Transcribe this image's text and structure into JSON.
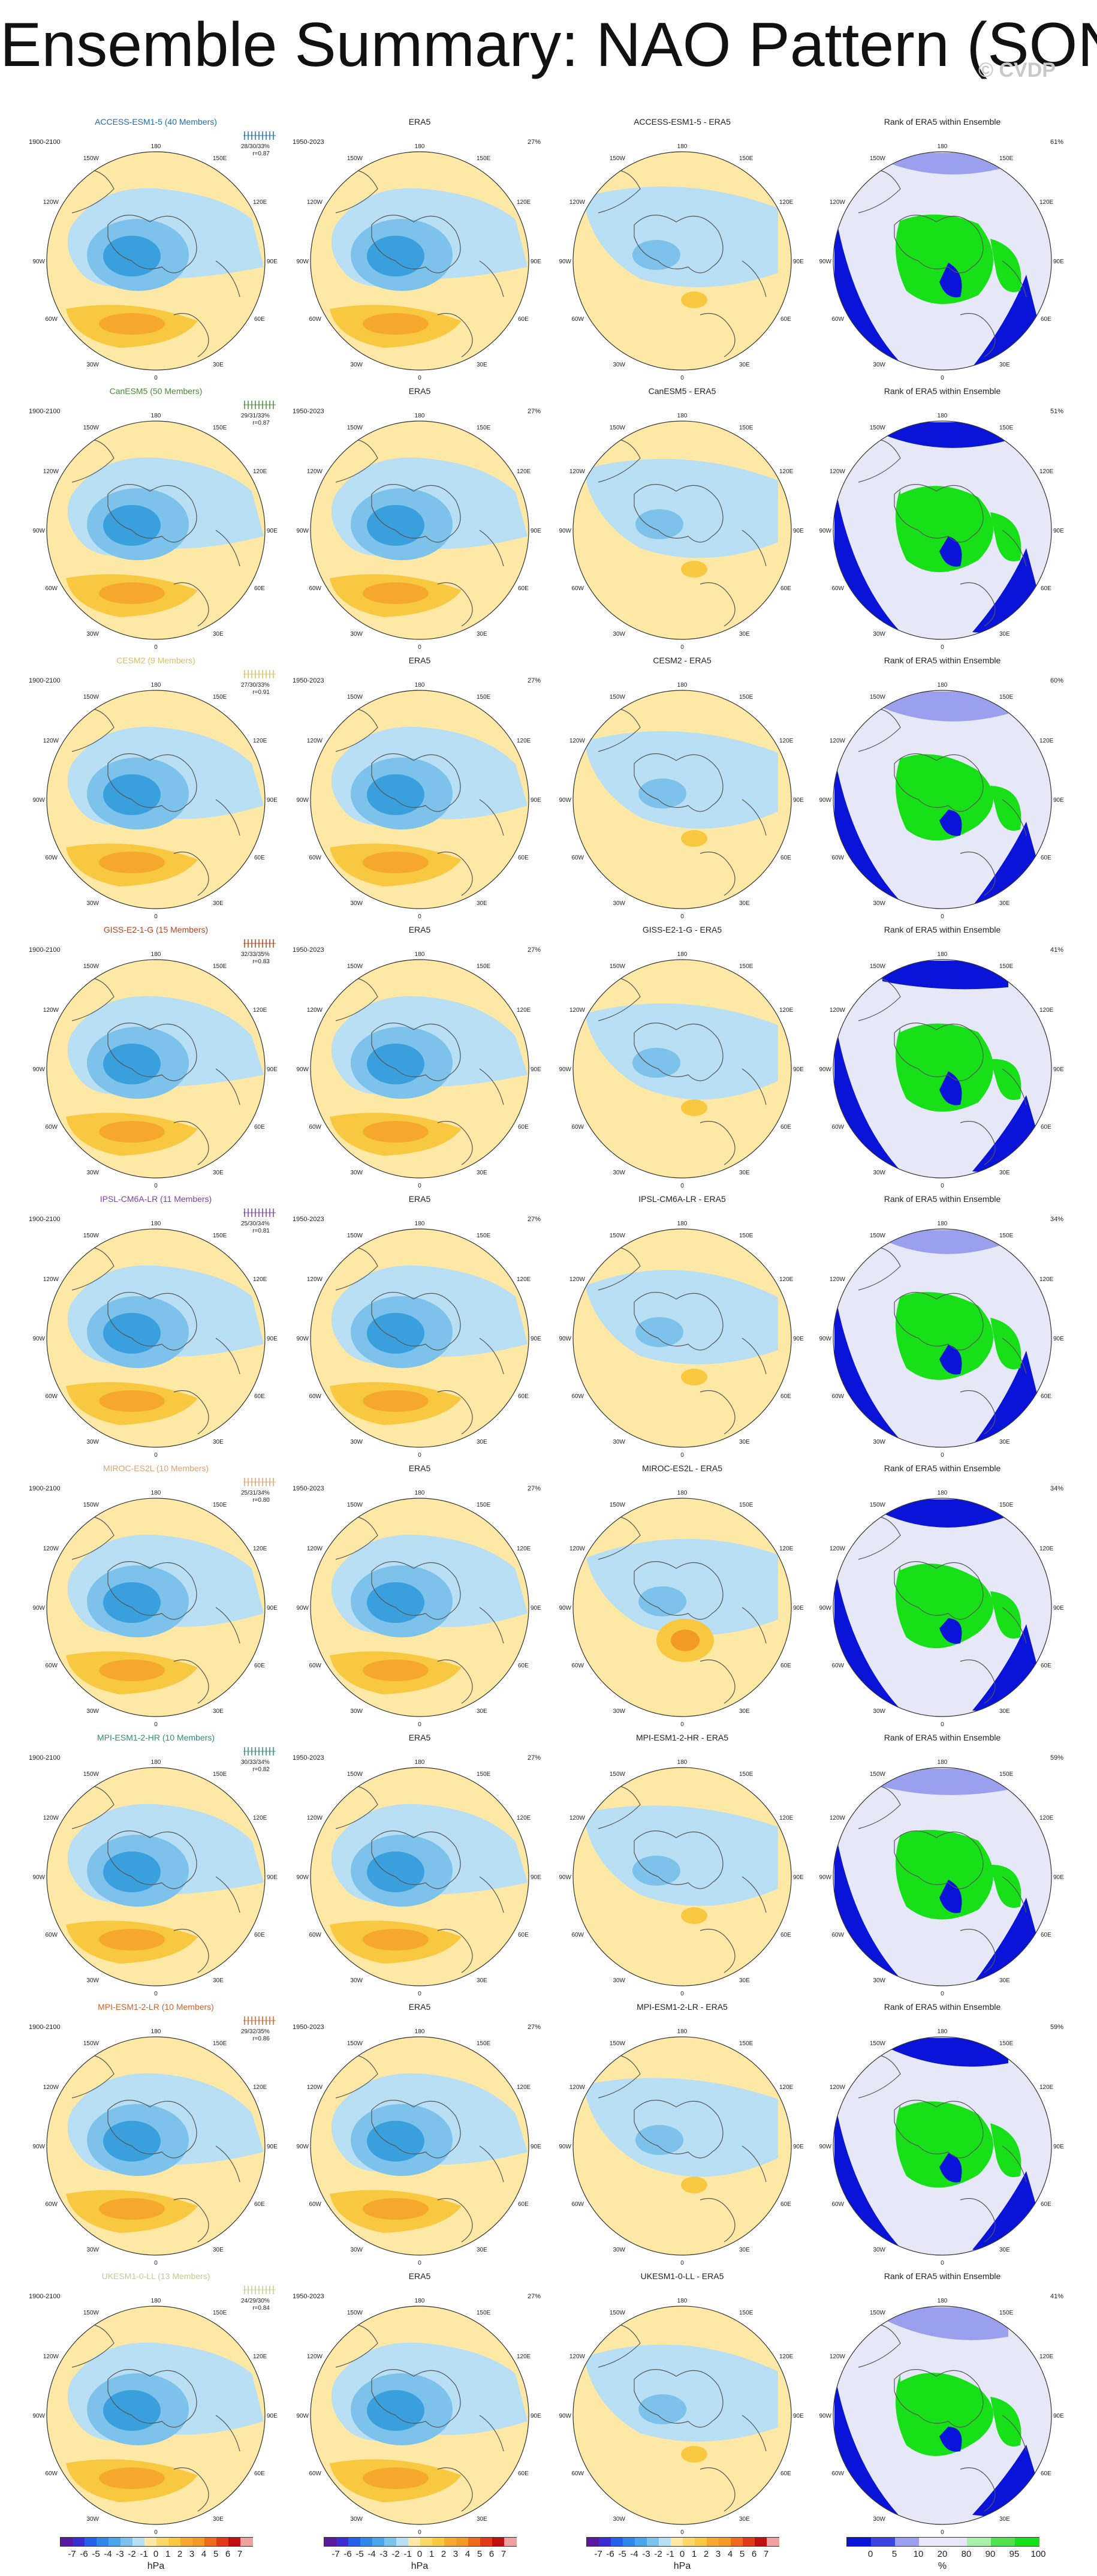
{
  "title": "Ensemble Summary: NAO Pattern (SON)",
  "watermark": "© CVDP",
  "column_headers": [
    "ERA5",
    "Rank of ERA5 within Ensemble"
  ],
  "colors": {
    "positive_light": "#fde9a5",
    "positive": "#f8c840",
    "positive_strong": "#f39a24",
    "negative_light": "#b9dff5",
    "negative": "#7cc2ea",
    "negative_strong": "#3aa0dd",
    "rank_low": "#0a14d8",
    "rank_mid": "#e6e8f8",
    "rank_high": "#18e018",
    "ocean_bg": "#ffffff"
  },
  "map_labels": {
    "top": "180",
    "bottom": "0",
    "upper_left": "150W",
    "upper_right": "150E",
    "mid_left_upper": "120W",
    "mid_right_upper": "120E",
    "left": "90W",
    "right": "90E",
    "lower_left_mid": "60W",
    "lower_right_mid": "60E",
    "lower_left": "30W",
    "lower_right": "30E"
  },
  "chart_data": {
    "type": "table",
    "description_rows": "9 model rows x 4 columns of polar stereographic maps",
    "rows": [
      {
        "model": "ACCESS-ESM1-5 (40 Members)",
        "model_short": "ACCESS-ESM1-5",
        "color": "#1f6fa8",
        "period": "1900-2100",
        "stats": "28/30/33%",
        "r": "r=0.87",
        "rank_pct": "61%"
      },
      {
        "model": "CanESM5 (50 Members)",
        "model_short": "CanESM5",
        "color": "#4a8a3a",
        "period": "1900-2100",
        "stats": "29/31/33%",
        "r": "r=0.87",
        "rank_pct": "51%"
      },
      {
        "model": "CESM2 (9 Members)",
        "model_short": "CESM2",
        "color": "#d8c060",
        "period": "1900-2100",
        "stats": "27/30/33%",
        "r": "r=0.91",
        "rank_pct": "60%"
      },
      {
        "model": "GISS-E2-1-G (15 Members)",
        "model_short": "GISS-E2-1-G",
        "color": "#b5431e",
        "period": "1900-2100",
        "stats": "32/33/35%",
        "r": "r=0.83",
        "rank_pct": "41%"
      },
      {
        "model": "IPSL-CM6A-LR (11 Members)",
        "model_short": "IPSL-CM6A-LR",
        "color": "#7a3fb0",
        "period": "1900-2100",
        "stats": "25/30/34%",
        "r": "r=0.81",
        "rank_pct": "34%"
      },
      {
        "model": "MIROC-ES2L (10 Members)",
        "model_short": "MIROC-ES2L",
        "color": "#e0a070",
        "period": "1900-2100",
        "stats": "25/31/34%",
        "r": "r=0.80",
        "rank_pct": "34%"
      },
      {
        "model": "MPI-ESM1-2-HR (10 Members)",
        "model_short": "MPI-ESM1-2-HR",
        "color": "#2f8a78",
        "period": "1900-2100",
        "stats": "30/33/34%",
        "r": "r=0.82",
        "rank_pct": "59%"
      },
      {
        "model": "MPI-ESM1-2-LR (10 Members)",
        "model_short": "MPI-ESM1-2-LR",
        "color": "#d0612a",
        "period": "1900-2100",
        "stats": "29/32/35%",
        "r": "r=0.86",
        "rank_pct": "59%"
      },
      {
        "model": "UKESM1-0-LL (13 Members)",
        "model_short": "UKESM1-0-LL",
        "color": "#c8c890",
        "period": "1900-2100",
        "stats": "24/29/30%",
        "r": "r=0.84",
        "rank_pct": "41%"
      }
    ],
    "era5": {
      "title": "ERA5",
      "period": "1950-2023",
      "pct": "27%"
    },
    "difference_suffix": " - ERA5",
    "colorbar_hpa": {
      "ticks": [
        "-7",
        "-6",
        "-5",
        "-4",
        "-3",
        "-2",
        "-1",
        "0",
        "1",
        "2",
        "3",
        "4",
        "5",
        "6",
        "7"
      ],
      "unit": "hPa",
      "colors": [
        "#5a1aa0",
        "#3a2ed0",
        "#2460e8",
        "#2e88e8",
        "#4aa6ea",
        "#7cc2ea",
        "#b9dff5",
        "#fde9a5",
        "#fbd867",
        "#f8c840",
        "#f6a92e",
        "#f39a24",
        "#f06a1e",
        "#e03a18",
        "#c01010",
        "#f0a0a0"
      ]
    },
    "colorbar_rank": {
      "ticks": [
        "0",
        "5",
        "10",
        "20",
        "80",
        "90",
        "95",
        "100"
      ],
      "unit": "%",
      "colors": [
        "#0a14d8",
        "#3a44e0",
        "#9aa0ee",
        "#e6e8f8",
        "#e6e8f8",
        "#a8f0a8",
        "#50e050",
        "#18e018"
      ]
    }
  }
}
